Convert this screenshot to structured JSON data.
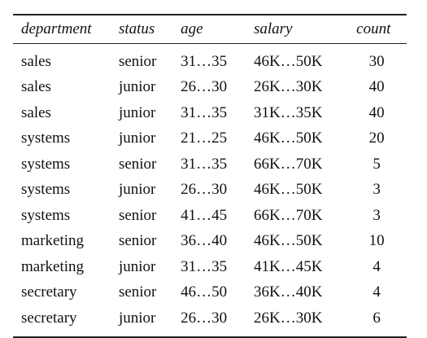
{
  "table": {
    "headers": {
      "department": "department",
      "status": "status",
      "age": "age",
      "salary": "salary",
      "count": "count"
    },
    "rows": [
      {
        "department": "sales",
        "status": "senior",
        "age": "31…35",
        "salary": "46K…50K",
        "count": "30"
      },
      {
        "department": "sales",
        "status": "junior",
        "age": "26…30",
        "salary": "26K…30K",
        "count": "40"
      },
      {
        "department": "sales",
        "status": "junior",
        "age": "31…35",
        "salary": "31K…35K",
        "count": "40"
      },
      {
        "department": "systems",
        "status": "junior",
        "age": "21…25",
        "salary": "46K…50K",
        "count": "20"
      },
      {
        "department": "systems",
        "status": "senior",
        "age": "31…35",
        "salary": "66K…70K",
        "count": "5"
      },
      {
        "department": "systems",
        "status": "junior",
        "age": "26…30",
        "salary": "46K…50K",
        "count": "3"
      },
      {
        "department": "systems",
        "status": "senior",
        "age": "41…45",
        "salary": "66K…70K",
        "count": "3"
      },
      {
        "department": "marketing",
        "status": "senior",
        "age": "36…40",
        "salary": "46K…50K",
        "count": "10"
      },
      {
        "department": "marketing",
        "status": "junior",
        "age": "31…35",
        "salary": "41K…45K",
        "count": "4"
      },
      {
        "department": "secretary",
        "status": "senior",
        "age": "46…50",
        "salary": "36K…40K",
        "count": "4"
      },
      {
        "department": "secretary",
        "status": "junior",
        "age": "26…30",
        "salary": "26K…30K",
        "count": "6"
      }
    ]
  }
}
